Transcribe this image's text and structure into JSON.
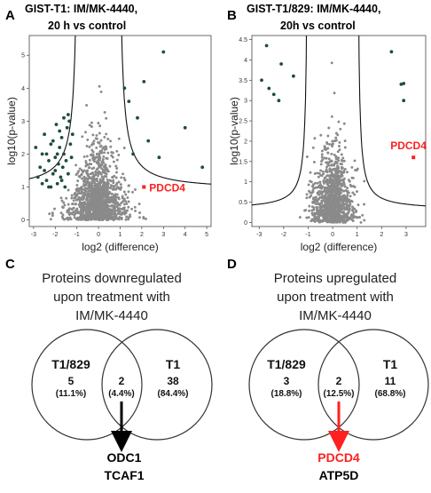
{
  "panels": {
    "A": {
      "label": "A",
      "title_line1": "GIST-T1: IM/MK-4440,",
      "title_line2": "20 h vs control"
    },
    "B": {
      "label": "B",
      "title_line1": "GIST-T1/829: IM/MK-4440,",
      "title_line2": "20h vs control"
    },
    "C": {
      "label": "C"
    },
    "D": {
      "label": "D"
    }
  },
  "colors": {
    "points": "#8a8a8a",
    "significant": "#1d4d40",
    "highlight": "#ff2020",
    "curve": "#111111",
    "arrow_c": "#000000",
    "arrow_d": "#ff2020"
  },
  "chart_data": [
    {
      "type": "scatter",
      "panel": "A",
      "xlabel": "log2 (difference)",
      "ylabel": "log10(p-value)",
      "xlim": [
        -3.2,
        5.2
      ],
      "ylim": [
        -0.2,
        5.6
      ],
      "xticks": [
        -3,
        -2,
        -1,
        0,
        1,
        2,
        3,
        4,
        5
      ],
      "yticks": [
        0,
        1,
        2,
        3,
        4,
        5
      ],
      "curve": {
        "s0": 0.9,
        "c": 0.9
      },
      "significant_points": [
        [
          -2.9,
          2.2
        ],
        [
          -2.7,
          1.6
        ],
        [
          -2.6,
          2.0
        ],
        [
          -2.5,
          2.6
        ],
        [
          -2.4,
          1.2
        ],
        [
          -2.3,
          1.8
        ],
        [
          -2.2,
          2.3
        ],
        [
          -2.1,
          1.4
        ],
        [
          -2.0,
          1.9
        ],
        [
          -1.95,
          2.9
        ],
        [
          -1.9,
          1.1
        ],
        [
          -1.85,
          1.7
        ],
        [
          -1.8,
          2.2
        ],
        [
          -1.75,
          1.3
        ],
        [
          -1.7,
          2.5
        ],
        [
          -1.65,
          1.6
        ],
        [
          -1.6,
          2.0
        ],
        [
          -1.55,
          1.0
        ],
        [
          -1.5,
          1.8
        ],
        [
          -1.45,
          2.8
        ],
        [
          -1.4,
          1.4
        ],
        [
          -1.35,
          3.0
        ],
        [
          -1.3,
          2.3
        ],
        [
          -1.25,
          1.9
        ],
        [
          -1.2,
          2.6
        ],
        [
          -2.8,
          1.3
        ],
        [
          -2.6,
          1.1
        ],
        [
          -2.2,
          1.0
        ],
        [
          -2.0,
          1.5
        ],
        [
          -1.8,
          2.7
        ],
        [
          -1.6,
          3.1
        ],
        [
          -1.4,
          3.2
        ],
        [
          -2.4,
          2.0
        ],
        [
          -2.1,
          2.4
        ],
        [
          -1.7,
          1.2
        ],
        [
          -1.9,
          2.0
        ],
        [
          -2.5,
          1.5
        ],
        [
          -2.3,
          1.0
        ],
        [
          3.0,
          5.1
        ],
        [
          2.1,
          4.2
        ],
        [
          1.2,
          4.0
        ],
        [
          1.4,
          3.6
        ],
        [
          1.8,
          3.1
        ],
        [
          2.3,
          2.4
        ],
        [
          2.8,
          1.9
        ],
        [
          4.0,
          2.8
        ],
        [
          4.8,
          1.6
        ],
        [
          1.6,
          2.0
        ]
      ],
      "highlight": {
        "label": "PDCD4",
        "x": 2.1,
        "y": 1.0
      }
    },
    {
      "type": "scatter",
      "panel": "B",
      "xlabel": "log2 (difference)",
      "ylabel": "log10(p-value)",
      "xlim": [
        -3.3,
        3.8
      ],
      "ylim": [
        -0.1,
        4.6
      ],
      "xticks": [
        -3,
        -2,
        -1,
        0,
        1,
        2,
        3
      ],
      "yticks": [
        0,
        0.5,
        1,
        1.5,
        2,
        2.5,
        3,
        3.5,
        4,
        4.5
      ],
      "curve": {
        "s0": 1.0,
        "c": 0.3
      },
      "significant_points": [
        [
          -2.9,
          3.5
        ],
        [
          -2.6,
          3.3
        ],
        [
          -2.4,
          3.15
        ],
        [
          -2.2,
          3.0
        ],
        [
          -2.7,
          4.35
        ],
        [
          -2.1,
          3.9
        ],
        [
          -1.6,
          3.6
        ],
        [
          2.4,
          4.2
        ],
        [
          2.8,
          3.4
        ],
        [
          2.9,
          3.42
        ],
        [
          2.9,
          3.0
        ]
      ],
      "highlight": {
        "label": "PDCD4",
        "x": 3.3,
        "y": 1.6
      }
    },
    {
      "type": "venn",
      "panel": "C",
      "title": [
        "Proteins downregulated",
        "upon treatment with",
        "IM/MK-4440"
      ],
      "sets": [
        {
          "name": "T1/829",
          "count": "5",
          "percent": "(11.1%)"
        },
        {
          "name": "T1",
          "count": "38",
          "percent": "(84.4%)"
        }
      ],
      "intersection": {
        "count": "2",
        "percent": "(4.4%)"
      },
      "shared_proteins": [
        "ODC1",
        "TCAF1"
      ]
    },
    {
      "type": "venn",
      "panel": "D",
      "title": [
        "Proteins upregulated",
        "upon treatment with",
        "IM/MK-4440"
      ],
      "sets": [
        {
          "name": "T1/829",
          "count": "3",
          "percent": "(18.8%)"
        },
        {
          "name": "T1",
          "count": "11",
          "percent": "(68.8%)"
        }
      ],
      "intersection": {
        "count": "2",
        "percent": "(12.5%)"
      },
      "shared_proteins": [
        "PDCD4",
        "ATP5D"
      ]
    }
  ]
}
